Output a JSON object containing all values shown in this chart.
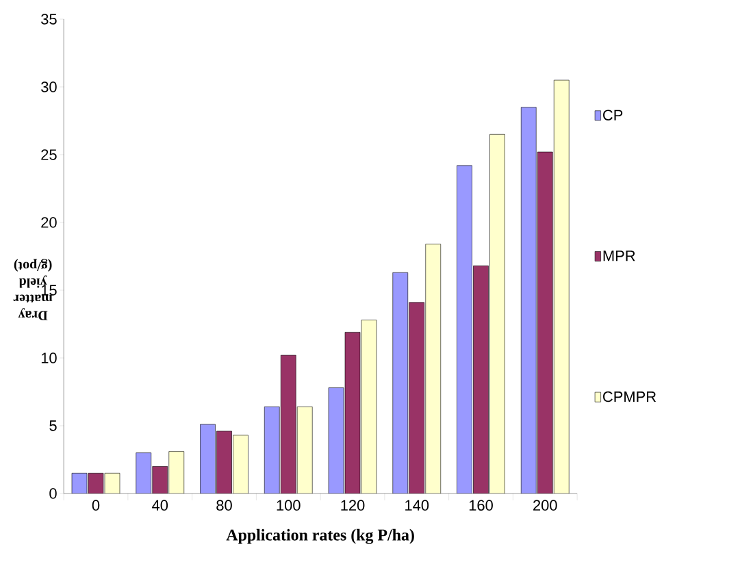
{
  "chart_data": {
    "type": "bar",
    "xlabel": "Application rates (kg P/ha)",
    "ylabel": "Dray matter yield (g/pot)",
    "categories": [
      "0",
      "40",
      "80",
      "100",
      "120",
      "140",
      "160",
      "200"
    ],
    "series": [
      {
        "name": "CP",
        "color": "#9999ff",
        "values": [
          1.5,
          3,
          5.1,
          6.4,
          7.8,
          16.3,
          24.2,
          28.5
        ]
      },
      {
        "name": "MPR",
        "color": "#993366",
        "values": [
          1.5,
          2,
          4.6,
          10.2,
          11.9,
          14.1,
          16.8,
          25.2
        ]
      },
      {
        "name": "CPMPR",
        "color": "#ffffcc",
        "values": [
          1.5,
          3.1,
          4.3,
          6.4,
          12.8,
          18.4,
          26.5,
          30.5
        ]
      }
    ],
    "ylim": [
      0,
      35
    ],
    "yticks": [
      0,
      5,
      10,
      15,
      20,
      25,
      30,
      35
    ],
    "legend": "right",
    "grid": false
  }
}
